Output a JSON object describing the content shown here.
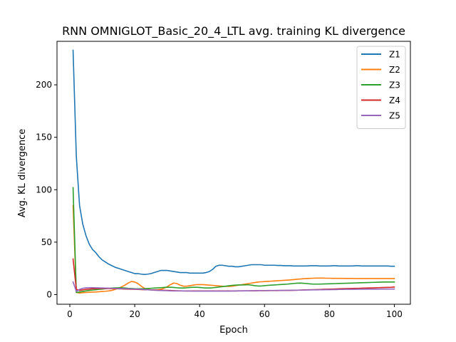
{
  "chart_data": {
    "type": "line",
    "title": "RNN OMNIGLOT_Basic_20_4_LTL avg. training KL divergence",
    "xlabel": "Epoch",
    "ylabel": "Avg. KL divergence",
    "xlim": [
      -3.95,
      104.95
    ],
    "ylim": [
      -9.2,
      241.5
    ],
    "xticks": [
      0,
      20,
      40,
      60,
      80,
      100
    ],
    "yticks": [
      0,
      50,
      100,
      150,
      200
    ],
    "grid": false,
    "legend_position": "top-right",
    "x": [
      1,
      2,
      3,
      4,
      5,
      6,
      7,
      8,
      9,
      10,
      11,
      12,
      13,
      14,
      15,
      16,
      17,
      18,
      19,
      20,
      21,
      22,
      23,
      24,
      25,
      26,
      27,
      28,
      29,
      30,
      31,
      32,
      33,
      34,
      35,
      36,
      37,
      38,
      39,
      40,
      41,
      42,
      43,
      44,
      45,
      46,
      47,
      48,
      49,
      50,
      51,
      52,
      53,
      54,
      55,
      56,
      57,
      58,
      59,
      60,
      61,
      62,
      63,
      64,
      65,
      66,
      67,
      68,
      69,
      70,
      71,
      72,
      73,
      74,
      75,
      76,
      77,
      78,
      79,
      80,
      81,
      82,
      83,
      84,
      85,
      86,
      87,
      88,
      89,
      90,
      91,
      92,
      93,
      94,
      95,
      96,
      97,
      98,
      99,
      100
    ],
    "series": [
      {
        "name": "Z1",
        "color": "#1f77b4",
        "values": [
          233,
          132,
          85,
          67,
          56,
          48,
          43,
          40,
          36,
          33,
          31,
          29,
          27.5,
          26,
          25,
          24,
          23,
          22,
          21,
          20,
          20,
          19.5,
          19.2,
          19.5,
          20,
          21,
          22,
          23,
          23,
          23,
          22.5,
          22,
          21.5,
          21,
          21,
          21,
          20.5,
          20.5,
          20.5,
          20.5,
          20.5,
          21,
          22,
          24,
          27,
          28,
          28,
          27.5,
          27,
          27,
          26.5,
          26.5,
          27,
          27.5,
          28,
          28.5,
          28.5,
          28.5,
          28.5,
          28,
          28,
          28,
          28,
          27.8,
          27.8,
          27.5,
          27.5,
          27.5,
          27.3,
          27.3,
          27.3,
          27.3,
          27.3,
          27.5,
          27.5,
          27.5,
          27.3,
          27.3,
          27.3,
          27.3,
          27.5,
          27.5,
          27.3,
          27.3,
          27.3,
          27.3,
          27.3,
          27.5,
          27.5,
          27.3,
          27.3,
          27.3,
          27.3,
          27.3,
          27.3,
          27.3,
          27.3,
          27.3,
          27,
          27
        ]
      },
      {
        "name": "Z2",
        "color": "#ff7f0e",
        "values": [
          85,
          2,
          1.5,
          1.8,
          2,
          2.2,
          2.4,
          2.5,
          2.7,
          3,
          3.2,
          3.5,
          4,
          5,
          6,
          7.5,
          9,
          11,
          12.5,
          12,
          10.5,
          8,
          6,
          5,
          4.5,
          4.5,
          4.5,
          5,
          6,
          7.5,
          9.5,
          11,
          10.5,
          9,
          8,
          8,
          8.5,
          9,
          9.5,
          9.5,
          9.5,
          9.3,
          9,
          8.8,
          8.5,
          8.3,
          8,
          7.8,
          7.8,
          8,
          8.5,
          9,
          9.5,
          10,
          10.5,
          11,
          11.5,
          12,
          12.2,
          12.4,
          12.6,
          12.8,
          13,
          13.2,
          13.4,
          13.6,
          13.8,
          14,
          14.3,
          14.6,
          14.9,
          15.1,
          15.3,
          15.5,
          15.6,
          15.7,
          15.7,
          15.7,
          15.6,
          15.6,
          15.5,
          15.5,
          15.5,
          15.5,
          15.4,
          15.4,
          15.4,
          15.3,
          15.3,
          15.3,
          15.3,
          15.3,
          15.3,
          15.3,
          15.3,
          15.3,
          15.3,
          15.3,
          15.3,
          15.3
        ]
      },
      {
        "name": "Z3",
        "color": "#2ca02c",
        "values": [
          102,
          2,
          2.5,
          3,
          3.5,
          4,
          4.3,
          4.6,
          5,
          5.3,
          5.6,
          6,
          6.2,
          6.4,
          6.5,
          6.5,
          6.3,
          6,
          5.8,
          5.6,
          5.5,
          5.5,
          5.6,
          5.8,
          6,
          6.2,
          6.4,
          6.6,
          6.8,
          7,
          7,
          6.8,
          6.5,
          6.3,
          6.3,
          6.5,
          6.8,
          7,
          7,
          6.8,
          6.5,
          6.3,
          6.3,
          6.5,
          6.8,
          7.2,
          7.6,
          8,
          8.4,
          8.8,
          9,
          9.2,
          9.2,
          9.3,
          9.4,
          9,
          8.5,
          8.2,
          8.2,
          8.5,
          8.8,
          9,
          9.2,
          9.4,
          9.6,
          9.8,
          10,
          10.3,
          10.6,
          10.9,
          11,
          10.8,
          10.5,
          10.2,
          10,
          10,
          10,
          10.1,
          10.2,
          10.3,
          10.4,
          10.5,
          10.6,
          10.7,
          10.8,
          10.9,
          11,
          11.1,
          11.2,
          11.3,
          11.4,
          11.5,
          11.6,
          11.7,
          11.8,
          11.9,
          12,
          12,
          12,
          12
        ]
      },
      {
        "name": "Z4",
        "color": "#d62728",
        "values": [
          34,
          5,
          4,
          4.5,
          5,
          5.3,
          5.5,
          5.6,
          5.7,
          5.8,
          5.8,
          5.8,
          5.7,
          5.6,
          5.5,
          5.4,
          5.3,
          5.2,
          5.1,
          5,
          4.9,
          4.8,
          4.7,
          4.6,
          4.5,
          4.4,
          4.3,
          4.2,
          4.1,
          4,
          3.9,
          3.8,
          3.7,
          3.6,
          3.5,
          3.5,
          3.5,
          3.5,
          3.5,
          3.5,
          3.5,
          3.5,
          3.5,
          3.5,
          3.5,
          3.5,
          3.5,
          3.5,
          3.5,
          3.5,
          3.5,
          3.6,
          3.6,
          3.6,
          3.6,
          3.6,
          3.6,
          3.7,
          3.7,
          3.7,
          3.7,
          3.8,
          3.8,
          3.8,
          3.9,
          3.9,
          4,
          4,
          4.1,
          4.2,
          4.3,
          4.4,
          4.5,
          4.6,
          4.7,
          4.8,
          4.9,
          5,
          5.1,
          5.2,
          5.3,
          5.4,
          5.5,
          5.6,
          5.7,
          5.8,
          5.9,
          6,
          6,
          6.1,
          6.2,
          6.3,
          6.4,
          6.5,
          6.6,
          6.7,
          6.8,
          6.9,
          7,
          7.2
        ]
      },
      {
        "name": "Z5",
        "color": "#9467bd",
        "values": [
          12,
          3,
          5,
          6,
          6.5,
          6.6,
          6.6,
          6.5,
          6.4,
          6.3,
          6.2,
          6.1,
          6,
          5.9,
          5.8,
          5.7,
          5.6,
          5.5,
          5.4,
          5.3,
          5.2,
          5,
          4.8,
          4.6,
          4.4,
          4.2,
          4,
          3.9,
          3.8,
          3.7,
          3.6,
          3.5,
          3.5,
          3.5,
          3.5,
          3.4,
          3.4,
          3.3,
          3.3,
          3.3,
          3.3,
          3.3,
          3.3,
          3.3,
          3.3,
          3.3,
          3.3,
          3.3,
          3.3,
          3.4,
          3.4,
          3.5,
          3.5,
          3.6,
          3.6,
          3.7,
          3.7,
          3.8,
          3.8,
          3.8,
          3.9,
          3.9,
          3.9,
          4,
          4,
          4,
          4.1,
          4.1,
          4.2,
          4.2,
          4.3,
          4.3,
          4.4,
          4.4,
          4.5,
          4.5,
          4.6,
          4.6,
          4.7,
          4.7,
          4.8,
          4.8,
          4.9,
          4.9,
          5,
          5,
          5,
          5,
          5.1,
          5.1,
          5.1,
          5.2,
          5.2,
          5.2,
          5.2,
          5.3,
          5.3,
          5.3,
          5.3,
          5.3
        ]
      }
    ]
  }
}
